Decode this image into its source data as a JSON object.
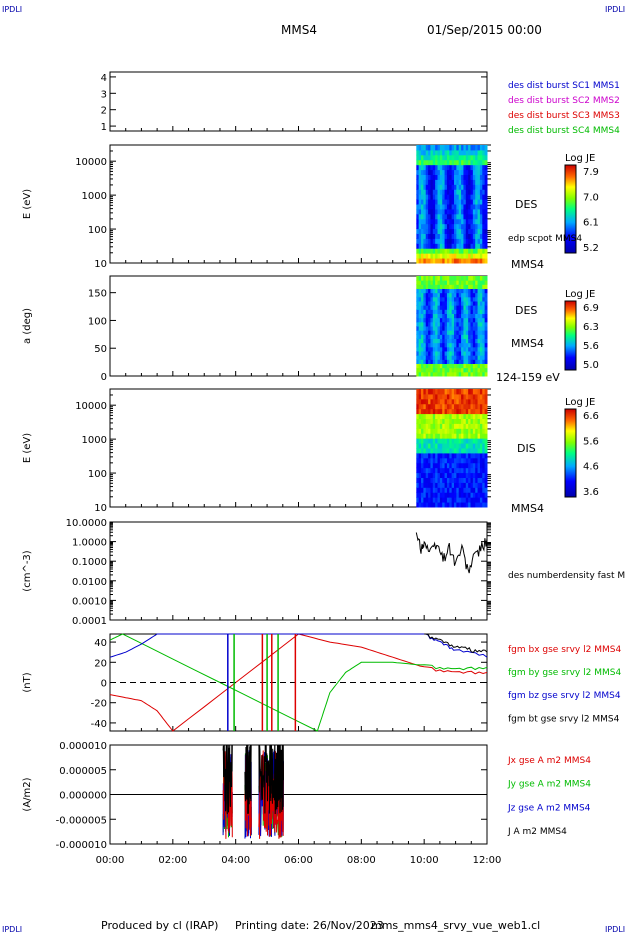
{
  "header": {
    "spacecraft": "MMS4",
    "datetime": "01/Sep/2015 00:00",
    "corner_tag": "IPDLI"
  },
  "footer": {
    "producer": "Produced by cl (IRAP)",
    "printing_date": "Printing date: 26/Nov/2023",
    "filename": "mms_mms4_srvy_vue_web1.cl"
  },
  "time_axis": {
    "ticks": [
      "00:00",
      "02:00",
      "04:00",
      "06:00",
      "08:00",
      "10:00",
      "12:00"
    ]
  },
  "colors": {
    "blue": "#0000cc",
    "magenta": "#cc00cc",
    "red": "#dd0000",
    "green": "#00bb00",
    "black": "#000000"
  },
  "chart_data": [
    {
      "type": "line",
      "panel": "burst",
      "ylabel": "",
      "yticks": [
        "1",
        "2",
        "3",
        "4"
      ],
      "ylim": [
        0.7,
        4.3
      ],
      "series": [],
      "legend": [
        {
          "name": "des dist burst SC1 MMS1",
          "color": "blue"
        },
        {
          "name": "des dist burst SC2 MMS2",
          "color": "magenta"
        },
        {
          "name": "des dist burst SC3 MMS3",
          "color": "red"
        },
        {
          "name": "des dist burst SC4 MMS4",
          "color": "green"
        }
      ]
    },
    {
      "type": "heatmap",
      "panel": "des_energy",
      "ylabel": "E (eV)",
      "yscale": "log",
      "yticks": [
        "10",
        "100",
        "1000",
        "10000"
      ],
      "ylim": [
        10,
        30000
      ],
      "data_x_range": [
        "09:45",
        "12:00"
      ],
      "right_labels": [
        "DES",
        "edp scpot MMS4",
        "MMS4"
      ],
      "colorbar": {
        "title": "Log JE",
        "ticks": [
          "7.9",
          "7.0",
          "6.1",
          "5.2"
        ],
        "range": [
          5.2,
          7.9
        ]
      }
    },
    {
      "type": "heatmap",
      "panel": "des_pitch",
      "ylabel": "a (deg)",
      "yticks": [
        "0",
        "50",
        "100",
        "150"
      ],
      "ylim": [
        0,
        180
      ],
      "data_x_range": [
        "09:45",
        "12:00"
      ],
      "right_labels": [
        "DES",
        "MMS4",
        "124-159 eV"
      ],
      "colorbar": {
        "title": "Log JE",
        "ticks": [
          "6.9",
          "6.3",
          "5.6",
          "5.0"
        ],
        "range": [
          5.0,
          6.9
        ]
      }
    },
    {
      "type": "heatmap",
      "panel": "dis_energy",
      "ylabel": "E (eV)",
      "yscale": "log",
      "yticks": [
        "10",
        "100",
        "1000",
        "10000"
      ],
      "ylim": [
        10,
        30000
      ],
      "data_x_range": [
        "09:45",
        "12:00"
      ],
      "right_labels": [
        "DIS",
        "MMS4"
      ],
      "colorbar": {
        "title": "Log JE",
        "ticks": [
          "6.6",
          "5.6",
          "4.6",
          "3.6"
        ],
        "range": [
          3.6,
          6.6
        ]
      }
    },
    {
      "type": "line",
      "panel": "density",
      "ylabel": "(cm^-3)",
      "yscale": "log",
      "yticks": [
        "10.0000",
        "1.0000",
        "0.1000",
        "0.0100",
        "0.0010",
        "0.0001"
      ],
      "ylim": [
        0.0001,
        10
      ],
      "legend": [
        {
          "name": "des numberdensity fast M",
          "color": "black"
        }
      ],
      "series": [
        {
          "name": "des numberdensity fast M",
          "color": "black",
          "x_hours": [
            9.75,
            9.9,
            10.0,
            10.2,
            10.4,
            10.6,
            10.8,
            11.0,
            11.2,
            11.4,
            11.6,
            11.8,
            12.0
          ],
          "values": [
            2.0,
            0.6,
            0.9,
            0.3,
            0.8,
            0.15,
            0.6,
            0.08,
            0.5,
            0.03,
            0.2,
            0.5,
            1.5
          ]
        }
      ]
    },
    {
      "type": "line",
      "panel": "magnetic_field",
      "ylabel": "(nT)",
      "yticks": [
        "40",
        "20",
        "0",
        "-20",
        "-40"
      ],
      "ylim": [
        -48,
        48
      ],
      "legend": [
        {
          "name": "fgm bx gse srvy l2 MMS4",
          "color": "red"
        },
        {
          "name": "fgm by gse srvy l2 MMS4",
          "color": "green"
        },
        {
          "name": "fgm bz gse srvy l2 MMS4",
          "color": "blue"
        },
        {
          "name": "fgm bt gse srvy l2 MMS4",
          "color": "black"
        }
      ],
      "series": [
        {
          "name": "fgm bx gse srvy l2 MMS4",
          "color": "red",
          "x_hours": [
            0,
            0.5,
            1.0,
            1.5,
            2.0,
            6.0,
            7.0,
            8.0,
            9.0,
            10.0,
            11.0,
            12.0
          ],
          "values": [
            -12,
            -15,
            -18,
            -28,
            -48,
            48,
            40,
            35,
            25,
            15,
            10,
            10
          ]
        },
        {
          "name": "fgm by gse srvy l2 MMS4",
          "color": "green",
          "x_hours": [
            0,
            0.4,
            6.6,
            7.0,
            7.5,
            8.0,
            9.0,
            10.0,
            11.0,
            12.0
          ],
          "values": [
            42,
            48,
            -48,
            -10,
            10,
            20,
            20,
            17,
            13,
            15
          ]
        },
        {
          "name": "fgm bz gse srvy l2 MMS4",
          "color": "blue",
          "x_hours": [
            0,
            0.5,
            1.0,
            1.5,
            10.0,
            10.5,
            11.0,
            12.0
          ],
          "values": [
            25,
            30,
            38,
            48,
            48,
            40,
            32,
            25
          ]
        },
        {
          "name": "fgm bt gse srvy l2 MMS4",
          "color": "black",
          "x_hours": [
            10.0,
            10.5,
            11.0,
            11.5,
            12.0
          ],
          "values": [
            48,
            42,
            35,
            32,
            30
          ]
        }
      ]
    },
    {
      "type": "line",
      "panel": "current_density",
      "ylabel": "(A/m2)",
      "yticks": [
        "0.000010",
        "0.000005",
        "0.000000",
        "-0.000005",
        "-0.000010"
      ],
      "ylim": [
        -1e-05,
        1e-05
      ],
      "legend": [
        {
          "name": "Jx gse A m2 MMS4",
          "color": "red"
        },
        {
          "name": "Jy gse A m2 MMS4",
          "color": "green"
        },
        {
          "name": "Jz gse A m2 MMS4",
          "color": "blue"
        },
        {
          "name": "J A m2 MMS4",
          "color": "black"
        }
      ],
      "series": []
    }
  ]
}
